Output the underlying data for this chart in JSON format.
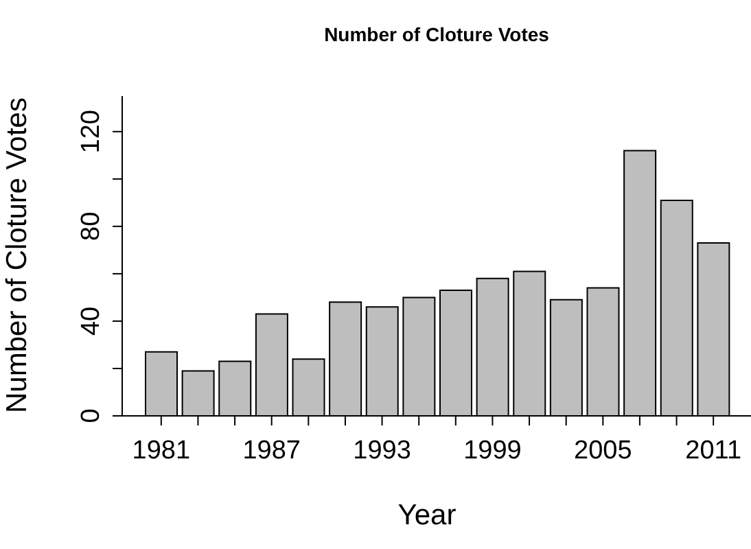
{
  "chart_data": {
    "type": "bar",
    "title": "Number of Cloture Votes",
    "xlabel": "Year",
    "ylabel": "Number of Cloture Votes",
    "categories": [
      "1981",
      null,
      null,
      "1987",
      null,
      null,
      "1993",
      null,
      null,
      "1999",
      null,
      null,
      "2005",
      null,
      null,
      "2011"
    ],
    "values": [
      27,
      19,
      23,
      43,
      24,
      48,
      46,
      50,
      53,
      58,
      61,
      49,
      54,
      112,
      91,
      73
    ],
    "color": "#bebebe",
    "ylim": [
      0,
      135
    ],
    "yticks": [
      0,
      {
        "value": 20,
        "label": null
      },
      40,
      {
        "value": 60,
        "label": null
      },
      80,
      {
        "value": 100,
        "label": null
      },
      120
    ],
    "grid": false,
    "legend": false
  }
}
